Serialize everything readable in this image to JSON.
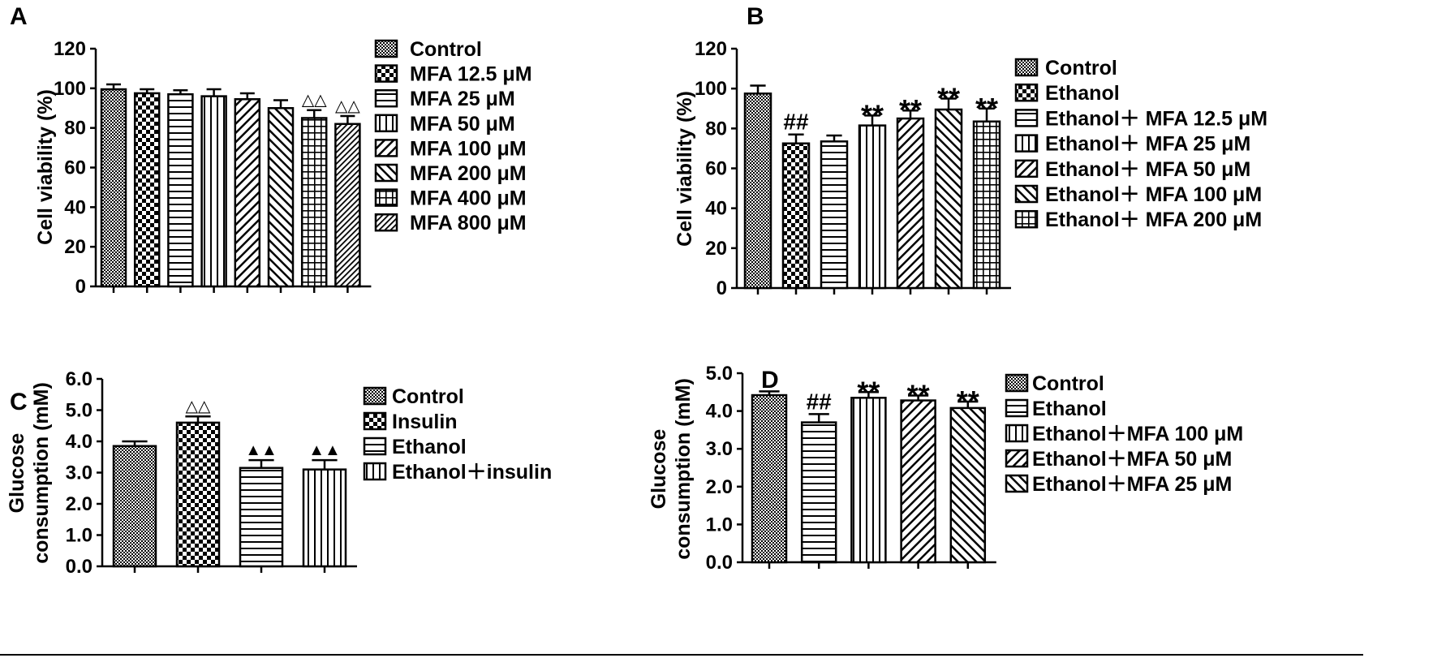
{
  "chart_data": [
    {
      "panel": "A",
      "type": "bar",
      "ylabel": "Cell viability (%)",
      "ylim": [
        0,
        120
      ],
      "yticks": [
        "0",
        "20",
        "40",
        "60",
        "80",
        "100",
        "120"
      ],
      "categories": [
        "Control",
        "MFA 12.5 μM",
        "MFA 25 μM",
        "MFA 50 μM",
        "MFA 100 μM",
        "MFA 200 μM",
        "MFA 400 μM",
        "MFA 800 μM"
      ],
      "values": [
        99.5,
        97.5,
        97,
        96,
        94.5,
        90,
        85,
        82
      ],
      "errors": [
        2.5,
        2,
        2,
        3.5,
        3,
        4,
        4,
        4
      ],
      "annotations": [
        "",
        "",
        "",
        "",
        "",
        "",
        "△△",
        "△△"
      ],
      "patterns": [
        "grid",
        "checker",
        "hlines",
        "vlines",
        "diag-r",
        "diag-l",
        "crosshatch",
        "diag-r-dense"
      ],
      "legend_position": "right"
    },
    {
      "panel": "B",
      "type": "bar",
      "ylabel": "Cell viability (%)",
      "ylim": [
        0,
        120
      ],
      "yticks": [
        "0",
        "20",
        "40",
        "60",
        "80",
        "100",
        "120"
      ],
      "categories": [
        "Control",
        "Ethanol",
        "Ethanol＋ MFA 12.5 μM",
        "Ethanol＋ MFA 25 μM",
        "Ethanol＋ MFA 50 μM",
        "Ethanol＋ MFA 100 μM",
        "Ethanol＋ MFA 200 μM"
      ],
      "values": [
        97.5,
        72.5,
        73.5,
        81.5,
        85,
        89.5,
        83.5
      ],
      "errors": [
        4,
        4.5,
        3,
        5,
        4,
        5.5,
        6.5
      ],
      "annotations": [
        "",
        "##",
        "",
        "**",
        "**",
        "**",
        "**"
      ],
      "patterns": [
        "grid",
        "checker",
        "hlines",
        "vlines",
        "diag-r",
        "diag-l",
        "crosshatch"
      ],
      "legend_position": "right"
    },
    {
      "panel": "C",
      "type": "bar",
      "ylabel": [
        "Glucose",
        "consumption (mM)"
      ],
      "ylim": [
        0,
        6
      ],
      "yticks": [
        "0.0",
        "1.0",
        "2.0",
        "3.0",
        "4.0",
        "5.0",
        "6.0"
      ],
      "categories": [
        "Control",
        "Insulin",
        "Ethanol",
        "Ethanol＋insulin"
      ],
      "values": [
        3.85,
        4.6,
        3.15,
        3.1
      ],
      "errors": [
        0.15,
        0.2,
        0.25,
        0.3
      ],
      "annotations": [
        "",
        "△△",
        "▲▲",
        "▲▲"
      ],
      "patterns": [
        "grid",
        "checker",
        "hlines",
        "vlines"
      ],
      "legend_position": "right"
    },
    {
      "panel": "D",
      "type": "bar",
      "ylabel": [
        "Glucose",
        "consumption (mM)"
      ],
      "ylim": [
        0,
        5
      ],
      "yticks": [
        "0.0",
        "1.0",
        "2.0",
        "3.0",
        "4.0",
        "5.0"
      ],
      "categories": [
        "Control",
        "Ethanol",
        "Ethanol＋MFA 100 μM",
        "Ethanol＋MFA 50 μM",
        "Ethanol＋MFA 25 μM"
      ],
      "values": [
        4.42,
        3.7,
        4.35,
        4.28,
        4.08
      ],
      "errors": [
        0.1,
        0.22,
        0.15,
        0.13,
        0.17
      ],
      "annotations": [
        "",
        "##",
        "**",
        "**",
        "**"
      ],
      "patterns": [
        "grid",
        "hlines",
        "vlines",
        "diag-r",
        "diag-l"
      ],
      "legend_position": "right"
    }
  ]
}
